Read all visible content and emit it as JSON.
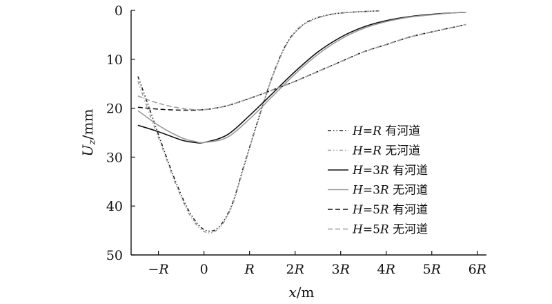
{
  "chart_data": {
    "type": "line",
    "xlabel": "x/m",
    "ylabel": "Uz/mm",
    "xlim": [
      -1.6,
      6.2
    ],
    "ylim": [
      0,
      50
    ],
    "y_inverted": true,
    "grid": false,
    "legend_position": "right",
    "x_ticks": [
      {
        "value": -1,
        "label": "−R"
      },
      {
        "value": 0,
        "label": "0"
      },
      {
        "value": 1,
        "label": "R"
      },
      {
        "value": 2,
        "label": "2R"
      },
      {
        "value": 3,
        "label": "3R"
      },
      {
        "value": 4,
        "label": "4R"
      },
      {
        "value": 5,
        "label": "5R"
      },
      {
        "value": 6,
        "label": "6R"
      }
    ],
    "y_ticks": [
      {
        "value": 0,
        "label": "0"
      },
      {
        "value": 10,
        "label": "10"
      },
      {
        "value": 20,
        "label": "20"
      },
      {
        "value": 30,
        "label": "30"
      },
      {
        "value": 40,
        "label": "40"
      },
      {
        "value": 50,
        "label": "50"
      }
    ],
    "series": [
      {
        "name": "H=R 有河道",
        "color": "#222222",
        "dash": "dashdotdot",
        "x": [
          -1.45,
          -1.2,
          -0.9,
          -0.6,
          -0.3,
          0.0,
          0.3,
          0.6,
          0.9,
          1.2,
          1.5,
          1.8,
          2.1,
          2.4,
          2.8,
          3.2,
          3.6,
          3.85
        ],
        "y": [
          13.5,
          20,
          28,
          35.5,
          41.5,
          44.8,
          44.5,
          40,
          31,
          22,
          13.5,
          7,
          3.5,
          1.8,
          0.8,
          0.4,
          0.2,
          0.1
        ]
      },
      {
        "name": "H=R 无河道",
        "color": "#999999",
        "dash": "dashdotdot",
        "x": [
          -1.45,
          -1.2,
          -0.9,
          -0.6,
          -0.3,
          0.0,
          0.3,
          0.6,
          0.9,
          1.2,
          1.5,
          1.8,
          2.1,
          2.4,
          2.8,
          3.2,
          3.6,
          3.85
        ],
        "y": [
          14.5,
          21,
          28.5,
          36,
          42,
          45.2,
          44.8,
          40.3,
          31.3,
          22.2,
          13.7,
          7.2,
          3.6,
          1.9,
          0.8,
          0.4,
          0.2,
          0.1
        ]
      },
      {
        "name": "H=3R 有河道",
        "color": "#111111",
        "dash": "solid",
        "x": [
          -1.45,
          -1.0,
          -0.5,
          -0.2,
          0.0,
          0.5,
          1.0,
          1.5,
          2.0,
          2.5,
          3.0,
          3.5,
          4.0,
          4.5,
          5.0,
          5.5,
          5.75
        ],
        "y": [
          23.5,
          24.8,
          26.5,
          27,
          27,
          25.5,
          21.5,
          17,
          12.5,
          8.5,
          5.5,
          3.4,
          2.1,
          1.3,
          0.8,
          0.5,
          0.4
        ]
      },
      {
        "name": "H=3R 无河道",
        "color": "#999999",
        "dash": "solid",
        "x": [
          -1.45,
          -1.0,
          -0.5,
          -0.2,
          0.0,
          0.5,
          1.0,
          1.5,
          2.0,
          2.5,
          3.0,
          3.5,
          4.0,
          4.5,
          5.0,
          5.5,
          5.75
        ],
        "y": [
          20.5,
          23.5,
          26,
          26.8,
          27,
          26,
          22.2,
          17.6,
          13,
          9,
          5.9,
          3.7,
          2.3,
          1.4,
          0.9,
          0.5,
          0.4
        ]
      },
      {
        "name": "H=5R 有河道",
        "color": "#111111",
        "dash": "dashed",
        "x": [
          -1.45,
          -1.0,
          -0.5,
          0.0,
          0.5,
          1.0,
          1.5,
          2.0,
          2.5,
          3.0,
          3.5,
          4.0,
          4.5,
          5.0,
          5.5,
          5.75
        ],
        "y": [
          19.8,
          20.2,
          20.4,
          20.3,
          19.5,
          18,
          16.3,
          14.5,
          12.5,
          10.5,
          8.5,
          7,
          5.5,
          4.4,
          3.4,
          2.9
        ]
      },
      {
        "name": "H=5R 无河道",
        "color": "#999999",
        "dash": "dashed",
        "x": [
          -1.45,
          -1.0,
          -0.5,
          0.0,
          0.5,
          1.0,
          1.5,
          2.0,
          2.5,
          3.0,
          3.5,
          4.0,
          4.5,
          5.0,
          5.5,
          5.75
        ],
        "y": [
          17.5,
          19,
          20,
          20.3,
          19.5,
          18,
          16.3,
          14.5,
          12.5,
          10.5,
          8.5,
          7,
          5.5,
          4.4,
          3.4,
          2.9
        ]
      }
    ]
  }
}
